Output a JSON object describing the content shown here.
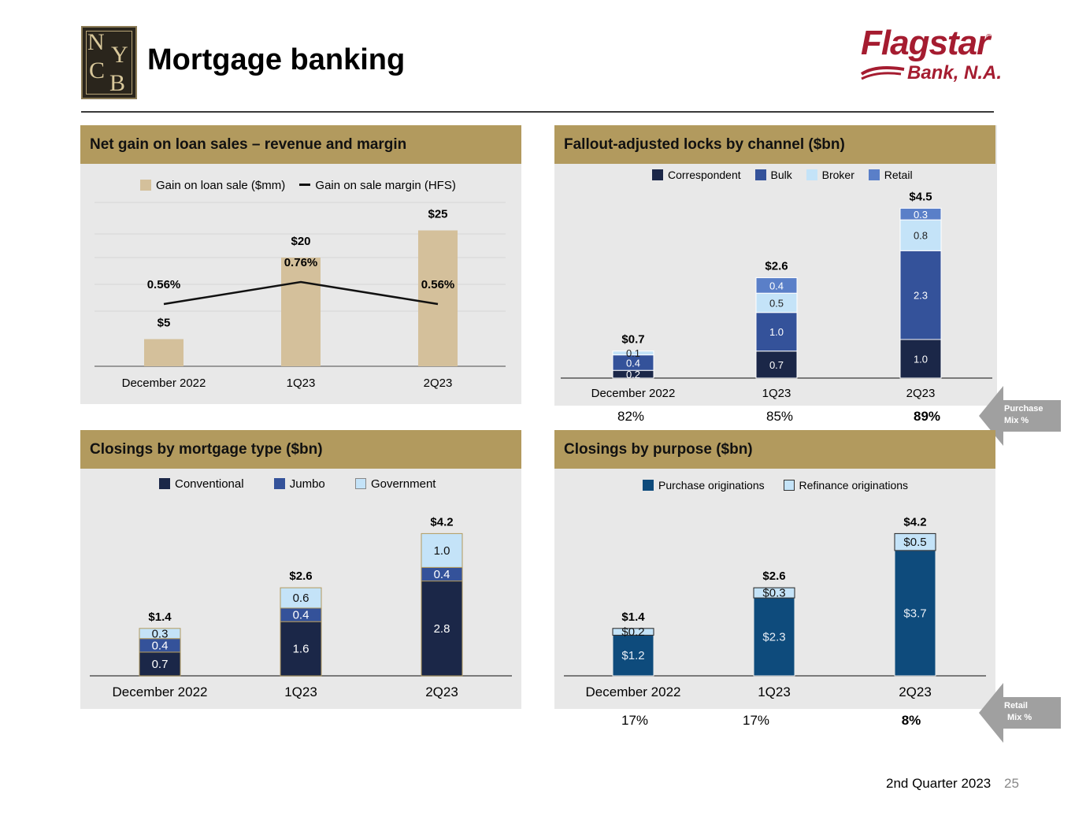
{
  "header": {
    "title": "Mortgage banking",
    "nycb_letters": [
      "N",
      "Y",
      "C",
      "B"
    ],
    "brand_name": "Flagstar",
    "brand_reg": "®",
    "brand_sub": "Bank, N.A."
  },
  "panels": {
    "gain": {
      "title": "Net gain on loan sales – revenue and margin"
    },
    "locks": {
      "title": "Fallout-adjusted locks by channel ($bn)"
    },
    "closings_type": {
      "title": "Closings by mortgage type ($bn)"
    },
    "closings_purpose": {
      "title": "Closings by purpose ($bn)"
    }
  },
  "side_labels": {
    "purchase_mix": {
      "line1": "Purchase",
      "line2": "Mix %",
      "values": [
        "82%",
        "85%",
        "89%"
      ]
    },
    "retail_mix": {
      "line1": "Retail",
      "line2": "Mix %",
      "values": [
        "17%",
        "17%",
        "8%"
      ]
    }
  },
  "footer": {
    "text": "2nd Quarter 2023",
    "page": "25"
  },
  "colors": {
    "gold": "#b29a5e",
    "tan_bar": "#d4c09b",
    "navy": "#1b2748",
    "bulk": "#34529a",
    "broker": "#c4e3f8",
    "retail": "#5a7fc8",
    "purchase": "#0e4b7c",
    "panel_bg": "#e8e8e8",
    "arrow_gray": "#a0a0a0"
  },
  "chart_data": [
    {
      "id": "gain",
      "type": "bar",
      "categories": [
        "December 2022",
        "1Q23",
        "2Q23"
      ],
      "series": [
        {
          "name": "Gain on loan sale ($mm)",
          "values": [
            5,
            20,
            25
          ],
          "labels": [
            "$5",
            "$20",
            "$25"
          ]
        },
        {
          "name": "Gain on sale margin (HFS)",
          "type": "line",
          "values": [
            0.56,
            0.76,
            0.56
          ],
          "labels": [
            "0.56%",
            "0.76%",
            "0.56%"
          ]
        }
      ],
      "ylim": [
        0,
        30
      ]
    },
    {
      "id": "locks",
      "type": "bar",
      "stacked": true,
      "categories": [
        "December 2022",
        "1Q23",
        "2Q23"
      ],
      "series": [
        {
          "name": "Correspondent",
          "values": [
            0.2,
            0.7,
            1.0
          ],
          "labels": [
            "0.2",
            "0.7",
            "1.0"
          ]
        },
        {
          "name": "Bulk",
          "values": [
            0.4,
            1.0,
            2.3
          ],
          "labels": [
            "0.4",
            "1.0",
            "2.3"
          ]
        },
        {
          "name": "Broker",
          "values": [
            0.1,
            0.5,
            0.8
          ],
          "labels": [
            "0.1",
            "0.5",
            "0.8"
          ]
        },
        {
          "name": "Retail",
          "values": [
            0.0,
            0.4,
            0.3
          ],
          "labels": [
            "",
            "0.4",
            "0.3"
          ]
        }
      ],
      "totals": [
        "$0.7",
        "$2.6",
        "$4.5"
      ],
      "ylim": [
        0,
        5
      ]
    },
    {
      "id": "closings_type",
      "type": "bar",
      "stacked": true,
      "categories": [
        "December 2022",
        "1Q23",
        "2Q23"
      ],
      "series": [
        {
          "name": "Conventional",
          "values": [
            0.7,
            1.6,
            2.8
          ],
          "labels": [
            "0.7",
            "1.6",
            "2.8"
          ]
        },
        {
          "name": "Jumbo",
          "values": [
            0.4,
            0.4,
            0.4
          ],
          "labels": [
            "0.4",
            "0.4",
            "0.4"
          ]
        },
        {
          "name": "Government",
          "values": [
            0.3,
            0.6,
            1.0
          ],
          "labels": [
            "0.3",
            "0.6",
            "1.0"
          ]
        }
      ],
      "totals": [
        "$1.4",
        "$2.6",
        "$4.2"
      ],
      "ylim": [
        0,
        4.5
      ]
    },
    {
      "id": "closings_purpose",
      "type": "bar",
      "stacked": true,
      "categories": [
        "December 2022",
        "1Q23",
        "2Q23"
      ],
      "series": [
        {
          "name": "Purchase originations",
          "values": [
            1.2,
            2.3,
            3.7
          ],
          "labels": [
            "$1.2",
            "$2.3",
            "$3.7"
          ]
        },
        {
          "name": "Refinance originations",
          "values": [
            0.2,
            0.3,
            0.5
          ],
          "labels": [
            "$0.2",
            "$0.3",
            "$0.5"
          ]
        }
      ],
      "totals": [
        "$1.4",
        "$2.6",
        "$4.2"
      ],
      "ylim": [
        0,
        4.5
      ]
    }
  ]
}
